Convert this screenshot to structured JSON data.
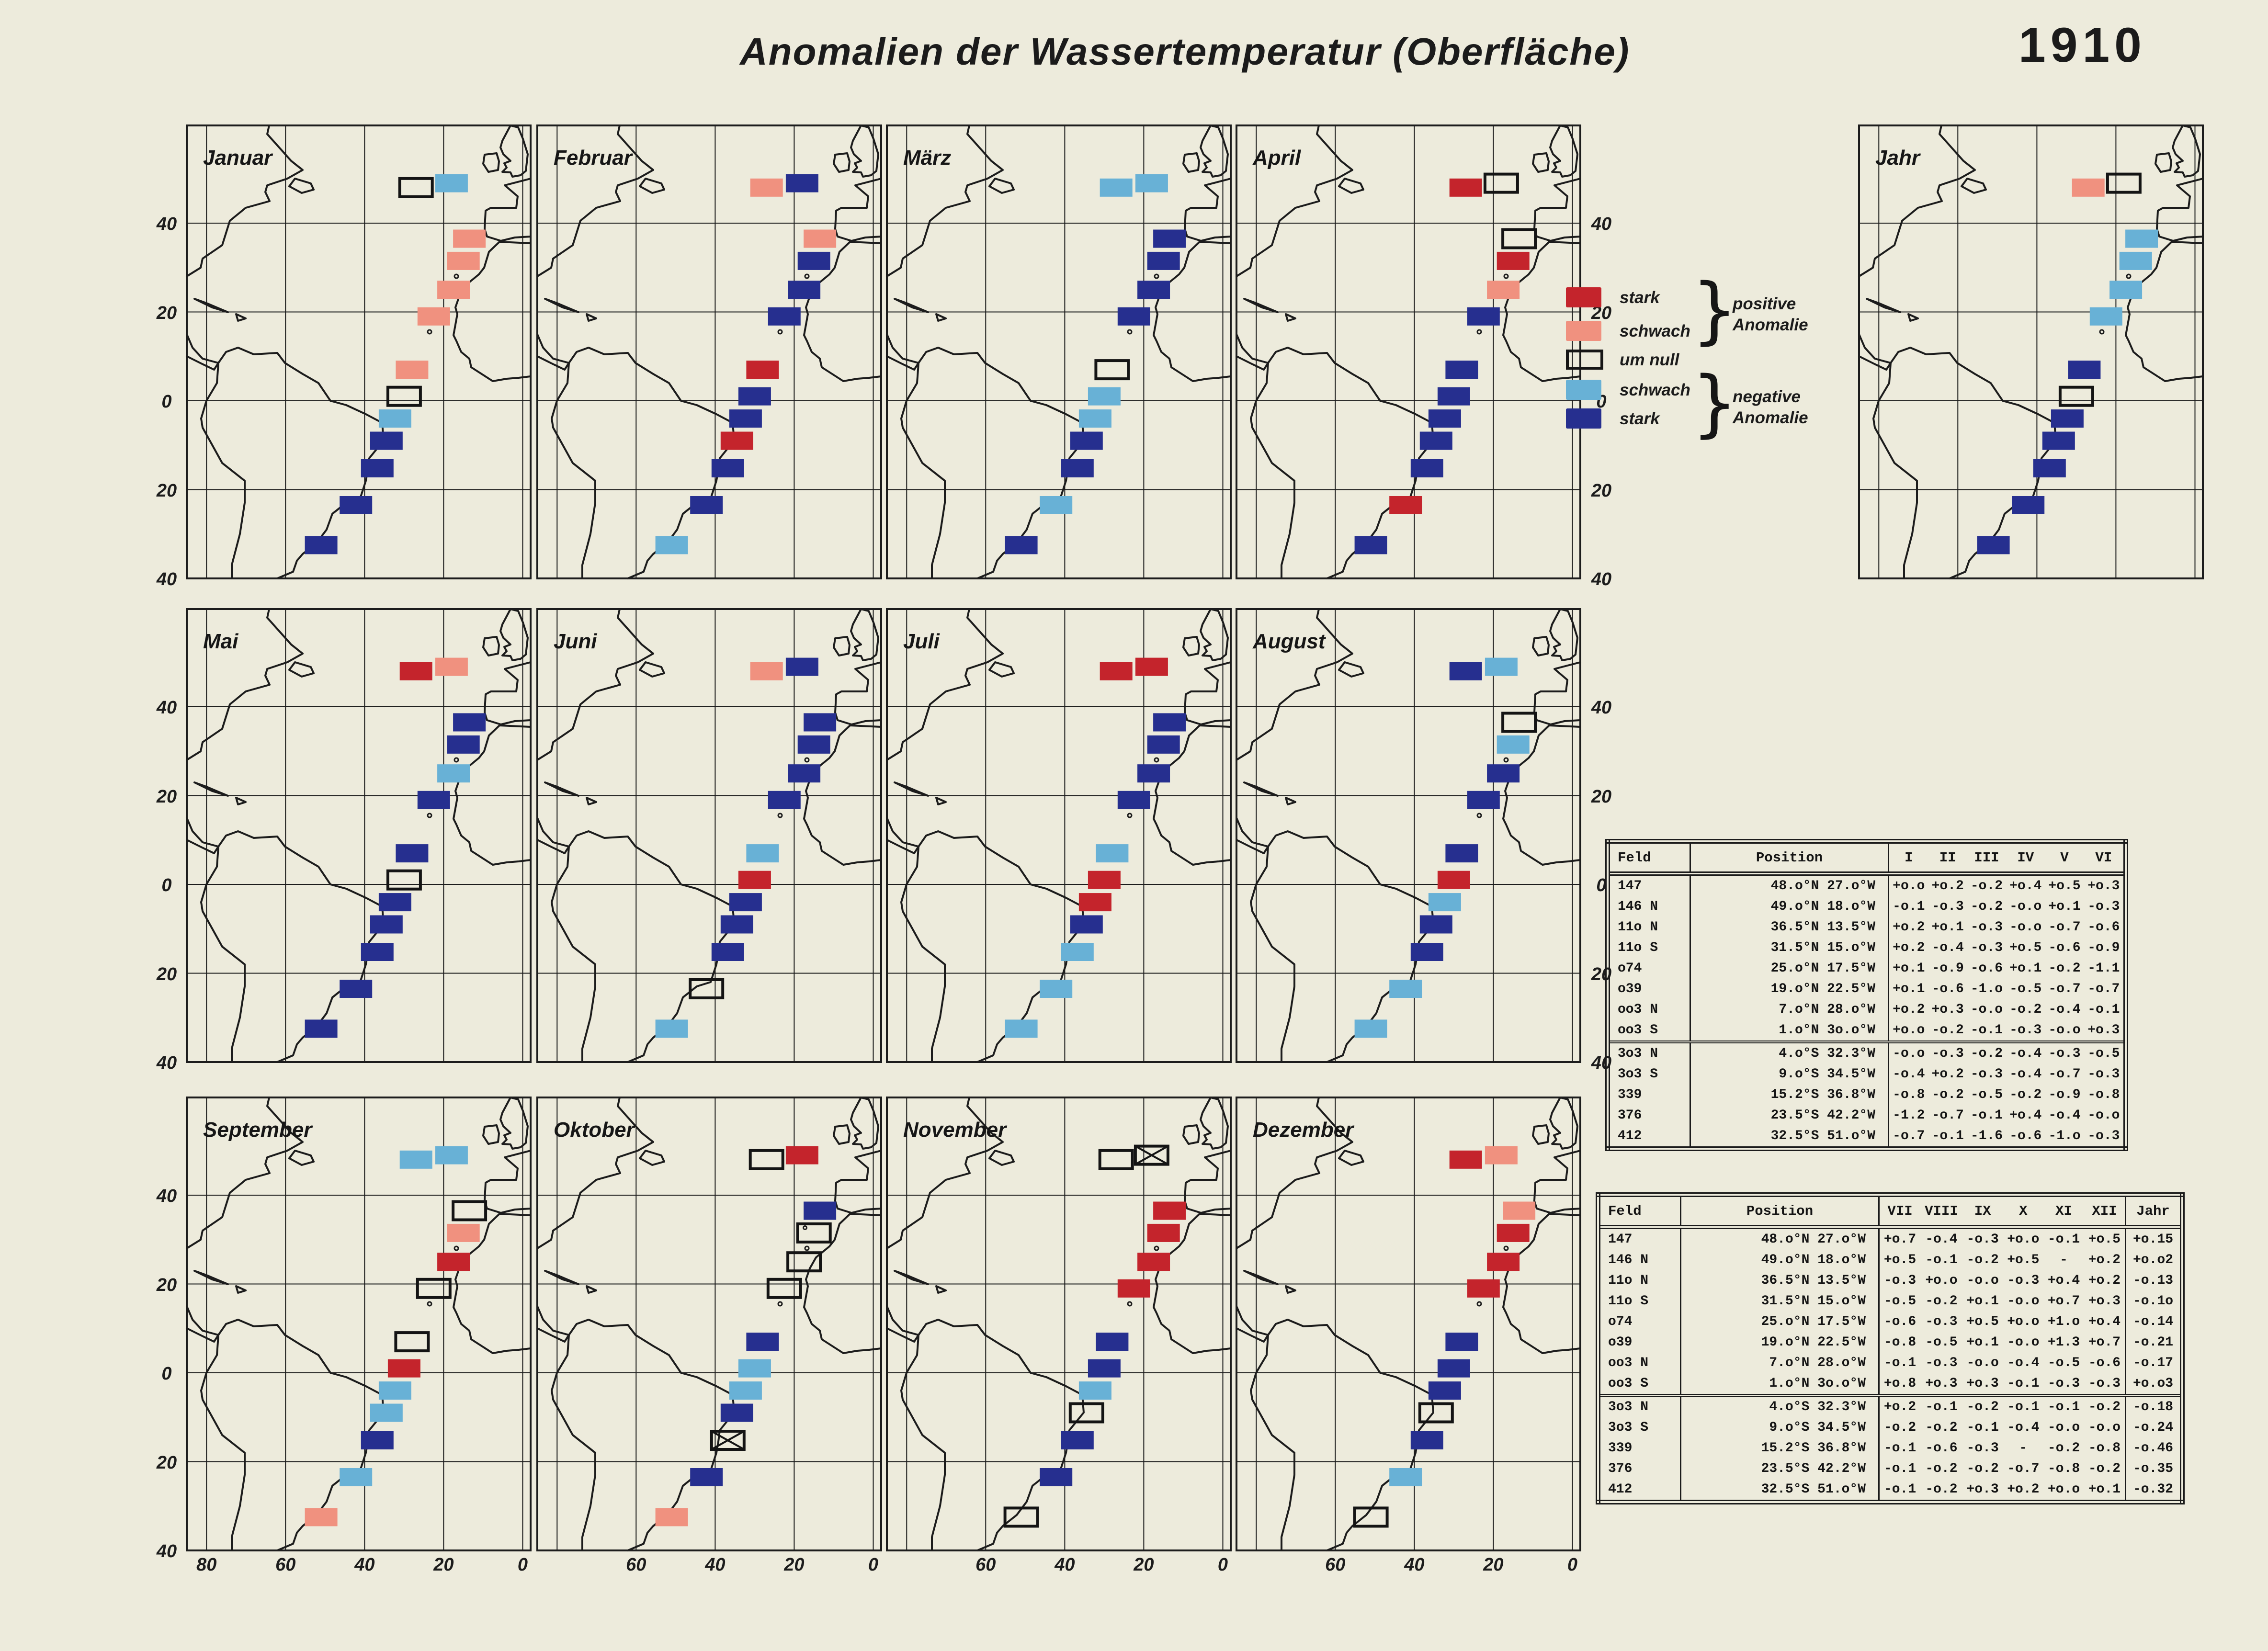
{
  "title": "Anomalien  der  Wassertemperatur  (Oberfläche)",
  "year": "1910",
  "colors": {
    "SP": "#c4242c",
    "WP": "#f0917f",
    "WN": "#68b1d6",
    "SN": "#262f8f",
    "paper": "#edebdc",
    "line": "#1c1c1c"
  },
  "legend": {
    "items": [
      {
        "key": "SP",
        "label": "stark"
      },
      {
        "key": "WP",
        "label": "schwach"
      },
      {
        "key": "N",
        "label": "um null"
      },
      {
        "key": "WN",
        "label": "schwach"
      },
      {
        "key": "SN",
        "label": "stark"
      }
    ],
    "groups": [
      {
        "lines": [
          "positive",
          "Anomalie"
        ]
      },
      {
        "lines": [
          "negative",
          "Anomalie"
        ]
      }
    ]
  },
  "axes": {
    "lat_labels": [
      "40",
      "20",
      "0",
      "20",
      "40"
    ],
    "lon_labels": [
      "80",
      "60",
      "40",
      "20",
      "0"
    ]
  },
  "fields": [
    {
      "id": "147",
      "lat": 48.0,
      "lonW": 27.0
    },
    {
      "id": "146 N",
      "lat": 49.0,
      "lonW": 18.0
    },
    {
      "id": "11o N",
      "lat": 36.5,
      "lonW": 13.5
    },
    {
      "id": "11o S",
      "lat": 31.5,
      "lonW": 15.0
    },
    {
      "id": "o74",
      "lat": 25.0,
      "lonW": 17.5
    },
    {
      "id": "o39",
      "lat": 19.0,
      "lonW": 22.5
    },
    {
      "id": "oo3 N",
      "lat": 7.0,
      "lonW": 28.0
    },
    {
      "id": "oo3 S",
      "lat": 1.0,
      "lonW": 30.0
    },
    {
      "id": "3o3 N",
      "lat": -4.0,
      "lonW": 32.3
    },
    {
      "id": "3o3 S",
      "lat": -9.0,
      "lonW": 34.5
    },
    {
      "id": "339",
      "lat": -15.2,
      "lonW": 36.8
    },
    {
      "id": "376",
      "lat": -23.5,
      "lonW": 42.2
    },
    {
      "id": "412",
      "lat": -32.5,
      "lonW": 51.0
    }
  ],
  "months": [
    {
      "label": "Januar",
      "markers": [
        "N",
        "WN",
        "WP",
        "WP",
        "WP",
        "WP",
        "WP",
        "N",
        "WN",
        "SN",
        "SN",
        "SN",
        "SN"
      ]
    },
    {
      "label": "Februar",
      "markers": [
        "WP",
        "SN",
        "WP",
        "SN",
        "SN",
        "SN",
        "SP",
        "SN",
        "SN",
        "SP",
        "SN",
        "SN",
        "WN"
      ]
    },
    {
      "label": "März",
      "markers": [
        "WN",
        "WN",
        "SN",
        "SN",
        "SN",
        "SN",
        "N",
        "WN",
        "WN",
        "SN",
        "SN",
        "WN",
        "SN"
      ]
    },
    {
      "label": "April",
      "markers": [
        "SP",
        "N",
        "N",
        "SP",
        "WP",
        "SN",
        "SN",
        "SN",
        "SN",
        "SN",
        "SN",
        "SP",
        "SN"
      ]
    },
    {
      "label": "Mai",
      "markers": [
        "SP",
        "WP",
        "SN",
        "SN",
        "WN",
        "SN",
        "SN",
        "N",
        "SN",
        "SN",
        "SN",
        "SN",
        "SN"
      ]
    },
    {
      "label": "Juni",
      "markers": [
        "WP",
        "SN",
        "SN",
        "SN",
        "SN",
        "SN",
        "WN",
        "SP",
        "SN",
        "SN",
        "SN",
        "N",
        "WN"
      ]
    },
    {
      "label": "Juli",
      "markers": [
        "SP",
        "SP",
        "SN",
        "SN",
        "SN",
        "SN",
        "WN",
        "SP",
        "SP",
        "SN",
        "WN",
        "WN",
        "WN"
      ]
    },
    {
      "label": "August",
      "markers": [
        "SN",
        "WN",
        "N",
        "WN",
        "SN",
        "SN",
        "SN",
        "SP",
        "WN",
        "SN",
        "SN",
        "WN",
        "WN"
      ]
    },
    {
      "label": "September",
      "markers": [
        "WN",
        "WN",
        "N",
        "WP",
        "SP",
        "N",
        "N",
        "SP",
        "WN",
        "WN",
        "SN",
        "WN",
        "WP"
      ]
    },
    {
      "label": "Oktober",
      "markers": [
        "N",
        "SP",
        "SN",
        "N",
        "N",
        "N",
        "SN",
        "WN",
        "WN",
        "SN",
        "X",
        "SN",
        "WP"
      ]
    },
    {
      "label": "November",
      "markers": [
        "N",
        "X",
        "SP",
        "SP",
        "SP",
        "SP",
        "SN",
        "SN",
        "WN",
        "N",
        "SN",
        "SN",
        "N"
      ]
    },
    {
      "label": "Dezember",
      "markers": [
        "SP",
        "WP",
        "WP",
        "SP",
        "SP",
        "SP",
        "SN",
        "SN",
        "SN",
        "N",
        "SN",
        "WN",
        "N"
      ]
    },
    {
      "label": "Jahr",
      "markers": [
        "WP",
        "N",
        "WN",
        "WN",
        "WN",
        "WN",
        "SN",
        "N",
        "SN",
        "SN",
        "SN",
        "SN",
        "SN"
      ]
    }
  ],
  "tables": {
    "upper": {
      "headers": [
        "Feld",
        "Position",
        "I",
        "II",
        "III",
        "IV",
        "V",
        "VI"
      ],
      "rows": [
        {
          "feld": "147",
          "position": "48.o°N 27.o°W",
          "values": [
            "+o.o",
            "+o.2",
            "-o.2",
            "+o.4",
            "+o.5",
            "+o.3"
          ]
        },
        {
          "feld": "146 N",
          "position": "49.o°N 18.o°W",
          "values": [
            "-o.1",
            "-o.3",
            "-o.2",
            "-o.o",
            "+o.1",
            "-o.3"
          ]
        },
        {
          "feld": "11o N",
          "position": "36.5°N 13.5°W",
          "values": [
            "+o.2",
            "+o.1",
            "-o.3",
            "-o.o",
            "-o.7",
            "-o.6"
          ]
        },
        {
          "feld": "11o S",
          "position": "31.5°N 15.o°W",
          "values": [
            "+o.2",
            "-o.4",
            "-o.3",
            "+o.5",
            "-o.6",
            "-o.9"
          ]
        },
        {
          "feld": "o74",
          "position": "25.o°N 17.5°W",
          "values": [
            "+o.1",
            "-o.9",
            "-o.6",
            "+o.1",
            "-o.2",
            "-1.1"
          ]
        },
        {
          "feld": "o39",
          "position": "19.o°N 22.5°W",
          "values": [
            "+o.1",
            "-o.6",
            "-1.o",
            "-o.5",
            "-o.7",
            "-o.7"
          ]
        },
        {
          "feld": "oo3 N",
          "position": "7.o°N 28.o°W",
          "values": [
            "+o.2",
            "+o.3",
            "-o.o",
            "-o.2",
            "-o.4",
            "-o.1"
          ]
        },
        {
          "feld": "oo3 S",
          "position": "1.o°N 3o.o°W",
          "values": [
            "+o.o",
            "-o.2",
            "-o.1",
            "-o.3",
            "-o.o",
            "+o.3"
          ]
        },
        {
          "feld": "3o3 N",
          "position": "4.o°S 32.3°W",
          "values": [
            "-o.o",
            "-o.3",
            "-o.2",
            "-o.4",
            "-o.3",
            "-o.5"
          ]
        },
        {
          "feld": "3o3 S",
          "position": "9.o°S 34.5°W",
          "values": [
            "-o.4",
            "+o.2",
            "-o.3",
            "-o.4",
            "-o.7",
            "-o.3"
          ]
        },
        {
          "feld": "339",
          "position": "15.2°S 36.8°W",
          "values": [
            "-o.8",
            "-o.2",
            "-o.5",
            "-o.2",
            "-o.9",
            "-o.8"
          ]
        },
        {
          "feld": "376",
          "position": "23.5°S 42.2°W",
          "values": [
            "-1.2",
            "-o.7",
            "-o.1",
            "+o.4",
            "-o.4",
            "-o.o"
          ]
        },
        {
          "feld": "412",
          "position": "32.5°S 51.o°W",
          "values": [
            "-o.7",
            "-o.1",
            "-1.6",
            "-o.6",
            "-1.o",
            "-o.3"
          ]
        }
      ]
    },
    "lower": {
      "headers": [
        "Feld",
        "Position",
        "VII",
        "VIII",
        "IX",
        "X",
        "XI",
        "XII",
        "Jahr"
      ],
      "rows": [
        {
          "feld": "147",
          "position": "48.o°N 27.o°W",
          "values": [
            "+o.7",
            "-o.4",
            "-o.3",
            "+o.o",
            "-o.1",
            "+o.5",
            "+o.15"
          ]
        },
        {
          "feld": "146 N",
          "position": "49.o°N 18.o°W",
          "values": [
            "+o.5",
            "-o.1",
            "-o.2",
            "+o.5",
            "-",
            "+o.2",
            "+o.o2"
          ]
        },
        {
          "feld": "11o N",
          "position": "36.5°N 13.5°W",
          "values": [
            "-o.3",
            "+o.o",
            "-o.o",
            "-o.3",
            "+o.4",
            "+o.2",
            "-o.13"
          ]
        },
        {
          "feld": "11o S",
          "position": "31.5°N 15.o°W",
          "values": [
            "-o.5",
            "-o.2",
            "+o.1",
            "-o.o",
            "+o.7",
            "+o.3",
            "-o.1o"
          ]
        },
        {
          "feld": "o74",
          "position": "25.o°N 17.5°W",
          "values": [
            "-o.6",
            "-o.3",
            "+o.5",
            "+o.o",
            "+1.o",
            "+o.4",
            "-o.14"
          ]
        },
        {
          "feld": "o39",
          "position": "19.o°N 22.5°W",
          "values": [
            "-o.8",
            "-o.5",
            "+o.1",
            "-o.o",
            "+1.3",
            "+o.7",
            "-o.21"
          ]
        },
        {
          "feld": "oo3 N",
          "position": "7.o°N 28.o°W",
          "values": [
            "-o.1",
            "-o.3",
            "-o.o",
            "-o.4",
            "-o.5",
            "-o.6",
            "-o.17"
          ]
        },
        {
          "feld": "oo3 S",
          "position": "1.o°N 3o.o°W",
          "values": [
            "+o.8",
            "+o.3",
            "+o.3",
            "-o.1",
            "-o.3",
            "-o.3",
            "+o.o3"
          ]
        },
        {
          "feld": "3o3 N",
          "position": "4.o°S 32.3°W",
          "values": [
            "+o.2",
            "-o.1",
            "-o.2",
            "-o.1",
            "-o.1",
            "-o.2",
            "-o.18"
          ]
        },
        {
          "feld": "3o3 S",
          "position": "9.o°S 34.5°W",
          "values": [
            "-o.2",
            "-o.2",
            "-o.1",
            "-o.4",
            "-o.o",
            "-o.o",
            "-o.24"
          ]
        },
        {
          "feld": "339",
          "position": "15.2°S 36.8°W",
          "values": [
            "-o.1",
            "-o.6",
            "-o.3",
            "-",
            "-o.2",
            "-o.8",
            "-o.46"
          ]
        },
        {
          "feld": "376",
          "position": "23.5°S 42.2°W",
          "values": [
            "-o.1",
            "-o.2",
            "-o.2",
            "-o.7",
            "-o.8",
            "-o.2",
            "-o.35"
          ]
        },
        {
          "feld": "412",
          "position": "32.5°S 51.o°W",
          "values": [
            "-o.1",
            "-o.2",
            "+o.3",
            "+o.2",
            "+o.o",
            "+o.1",
            "-o.32"
          ]
        }
      ]
    }
  },
  "chart_data": {
    "type": "heatmap",
    "title": "Anomalien der Wassertemperatur (Oberfläche) 1910",
    "x": [
      "I",
      "II",
      "III",
      "IV",
      "V",
      "VI",
      "VII",
      "VIII",
      "IX",
      "X",
      "XI",
      "XII",
      "Jahr"
    ],
    "legend_categories": [
      "stark positive Anomalie",
      "schwach positive Anomalie",
      "um null",
      "schwach negative Anomalie",
      "stark negative Anomalie"
    ],
    "rows": [
      {
        "feld": "147",
        "lat": 48.0,
        "lonW": 27.0,
        "values": [
          0.0,
          0.2,
          -0.2,
          0.4,
          0.5,
          0.3,
          0.7,
          -0.4,
          -0.3,
          0.0,
          -0.1,
          0.5,
          0.15
        ]
      },
      {
        "feld": "146 N",
        "lat": 49.0,
        "lonW": 18.0,
        "values": [
          -0.1,
          -0.3,
          -0.2,
          0.0,
          0.1,
          -0.3,
          0.5,
          -0.1,
          -0.2,
          0.5,
          null,
          0.2,
          0.02
        ]
      },
      {
        "feld": "11o N",
        "lat": 36.5,
        "lonW": 13.5,
        "values": [
          0.2,
          0.1,
          -0.3,
          0.0,
          -0.7,
          -0.6,
          -0.3,
          0.0,
          0.0,
          -0.3,
          0.4,
          0.2,
          -0.13
        ]
      },
      {
        "feld": "11o S",
        "lat": 31.5,
        "lonW": 15.0,
        "values": [
          0.2,
          -0.4,
          -0.3,
          0.5,
          -0.6,
          -0.9,
          -0.5,
          -0.2,
          0.1,
          0.0,
          0.7,
          0.3,
          -0.1
        ]
      },
      {
        "feld": "o74",
        "lat": 25.0,
        "lonW": 17.5,
        "values": [
          0.1,
          -0.9,
          -0.6,
          0.1,
          -0.2,
          -1.1,
          -0.6,
          -0.3,
          0.5,
          0.0,
          1.0,
          0.4,
          -0.14
        ]
      },
      {
        "feld": "o39",
        "lat": 19.0,
        "lonW": 22.5,
        "values": [
          0.1,
          -0.6,
          -1.0,
          -0.5,
          -0.7,
          -0.7,
          -0.8,
          -0.5,
          0.1,
          0.0,
          1.3,
          0.7,
          -0.21
        ]
      },
      {
        "feld": "oo3 N",
        "lat": 7.0,
        "lonW": 28.0,
        "values": [
          0.2,
          0.3,
          0.0,
          -0.2,
          -0.4,
          -0.1,
          -0.1,
          -0.3,
          0.0,
          -0.4,
          -0.5,
          -0.6,
          -0.17
        ]
      },
      {
        "feld": "oo3 S",
        "lat": 1.0,
        "lonW": 30.0,
        "values": [
          0.0,
          -0.2,
          -0.1,
          -0.3,
          0.0,
          0.3,
          0.8,
          0.3,
          0.3,
          -0.1,
          -0.3,
          -0.3,
          0.03
        ]
      },
      {
        "feld": "3o3 N",
        "lat": -4.0,
        "lonW": 32.3,
        "values": [
          0.0,
          -0.3,
          -0.2,
          -0.4,
          -0.3,
          -0.5,
          0.2,
          -0.1,
          -0.2,
          -0.1,
          -0.1,
          -0.2,
          -0.18
        ]
      },
      {
        "feld": "3o3 S",
        "lat": -9.0,
        "lonW": 34.5,
        "values": [
          -0.4,
          0.2,
          -0.3,
          -0.4,
          -0.7,
          -0.3,
          -0.2,
          -0.2,
          -0.1,
          -0.4,
          0.0,
          0.0,
          -0.24
        ]
      },
      {
        "feld": "339",
        "lat": -15.2,
        "lonW": 36.8,
        "values": [
          -0.8,
          -0.2,
          -0.5,
          -0.2,
          -0.9,
          -0.8,
          -0.1,
          -0.6,
          -0.3,
          null,
          -0.2,
          -0.8,
          -0.46
        ]
      },
      {
        "feld": "376",
        "lat": -23.5,
        "lonW": 42.2,
        "values": [
          -1.2,
          -0.7,
          -0.1,
          0.4,
          -0.4,
          0.0,
          -0.1,
          -0.2,
          -0.2,
          -0.7,
          -0.8,
          -0.2,
          -0.35
        ]
      },
      {
        "feld": "412",
        "lat": -32.5,
        "lonW": 51.0,
        "values": [
          -0.7,
          -0.1,
          -1.6,
          -0.6,
          -1.0,
          -0.3,
          -0.1,
          -0.2,
          0.3,
          0.2,
          0.0,
          0.1,
          -0.32
        ]
      }
    ]
  }
}
